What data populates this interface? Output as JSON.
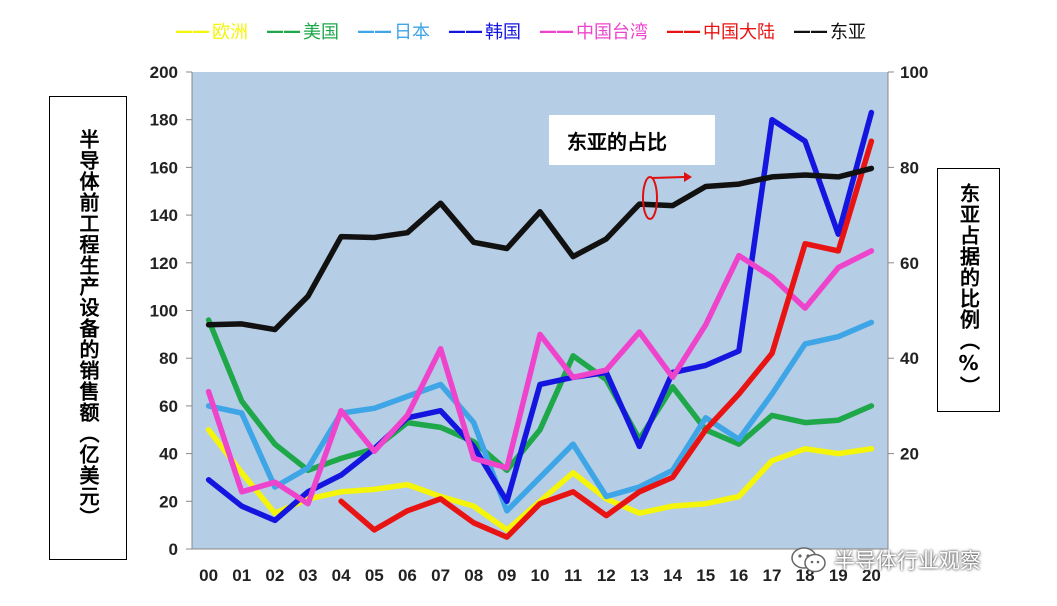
{
  "chart_data": {
    "type": "line",
    "categories": [
      "00",
      "01",
      "02",
      "03",
      "04",
      "05",
      "06",
      "07",
      "08",
      "09",
      "10",
      "11",
      "12",
      "13",
      "14",
      "15",
      "16",
      "17",
      "18",
      "19",
      "20"
    ],
    "ylabel": "半导体前工程生产设备的销售额（亿美元）",
    "ylabel_right": "东亚占据的比例（%）",
    "ylim": [
      0,
      200
    ],
    "ylim_right": [
      0,
      100
    ],
    "yticks": [
      0,
      20,
      40,
      60,
      80,
      100,
      120,
      140,
      160,
      180,
      200
    ],
    "yticks_right": [
      20,
      40,
      60,
      80,
      100
    ],
    "annotation": "东亚的占比",
    "plot_bg": "#b6cde6",
    "series": [
      {
        "name": "欧洲",
        "swatch": "——",
        "color": "#f5f50a",
        "axis": "left",
        "values": [
          50,
          32,
          15,
          21,
          24,
          25,
          27,
          22,
          18,
          8,
          20,
          32,
          21,
          15,
          18,
          19,
          22,
          37,
          42,
          40,
          42
        ]
      },
      {
        "name": "美国",
        "swatch": "——",
        "color": "#1ea84a",
        "axis": "left",
        "values": [
          96,
          62,
          44,
          33,
          38,
          42,
          53,
          51,
          45,
          33,
          50,
          81,
          71,
          46,
          68,
          50,
          44,
          56,
          53,
          54,
          60
        ]
      },
      {
        "name": "日本",
        "swatch": "——",
        "color": "#3ea5e6",
        "axis": "left",
        "values": [
          60,
          57,
          26,
          34,
          57,
          59,
          64,
          69,
          53,
          16,
          30,
          44,
          22,
          26,
          33,
          55,
          46,
          65,
          86,
          89,
          95
        ]
      },
      {
        "name": "韩国",
        "swatch": "——",
        "color": "#1515e0",
        "axis": "left",
        "values": [
          29,
          18,
          12,
          24,
          31,
          42,
          55,
          58,
          43,
          20,
          69,
          72,
          74,
          43,
          74,
          77,
          83,
          180,
          171,
          132,
          183
        ]
      },
      {
        "name": "中国台湾",
        "swatch": "——",
        "color": "#ee44cc",
        "axis": "left",
        "values": [
          66,
          24,
          28,
          19,
          58,
          41,
          56,
          84,
          38,
          34,
          90,
          72,
          75,
          91,
          72,
          94,
          123,
          114,
          101,
          118,
          125
        ]
      },
      {
        "name": "中国大陆",
        "swatch": "——",
        "color": "#e81414",
        "axis": "left",
        "values": [
          null,
          null,
          null,
          null,
          20,
          8,
          16,
          21,
          11,
          5,
          19,
          24,
          14,
          24,
          30,
          50,
          65,
          82,
          128,
          125,
          171
        ]
      },
      {
        "name": "东亚",
        "swatch": "——",
        "color": "#111111",
        "axis": "right",
        "values": [
          47,
          47.2,
          46,
          53,
          65.5,
          65.3,
          66.3,
          72.5,
          64.3,
          63,
          70.7,
          61.3,
          65,
          72.3,
          72,
          76,
          76.5,
          78,
          78.4,
          78,
          79.8
        ]
      }
    ]
  },
  "watermark": "半导体行业观察"
}
